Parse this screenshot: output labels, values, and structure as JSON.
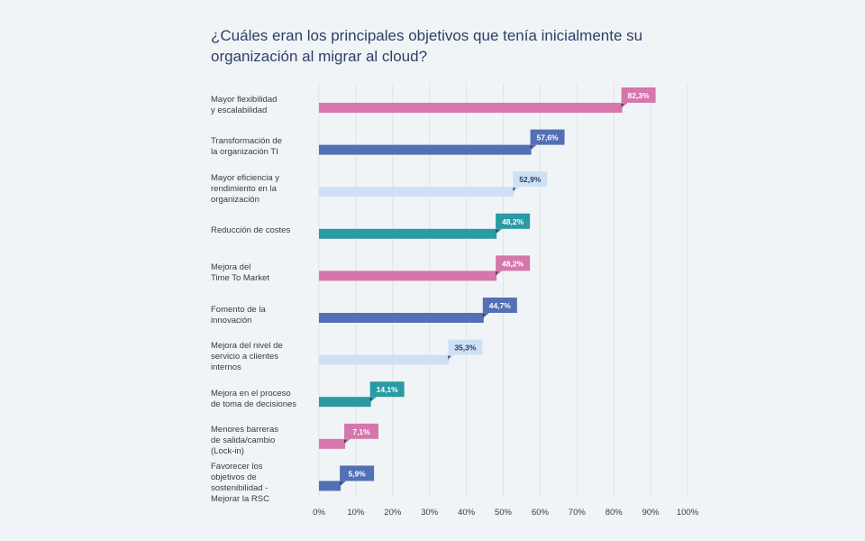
{
  "chart_data": {
    "type": "bar",
    "orientation": "horizontal",
    "title": "¿Cuáles eran los principales objetivos que tenía inicialmente su organización al migrar al cloud?",
    "categories": [
      [
        "Mayor flexibilidad",
        "y escalabilidad"
      ],
      [
        "Transformación de",
        "la organización TI"
      ],
      [
        "Mayor eficiencia y",
        "rendimiento en la",
        "organización"
      ],
      [
        "Reducción de costes"
      ],
      [
        "Mejora del",
        "Time To Market"
      ],
      [
        "Fomento de la",
        "innovación"
      ],
      [
        "Mejora del nivel de",
        "servicio a clientes",
        "internos"
      ],
      [
        "Mejora en el proceso",
        "de toma de decisiones"
      ],
      [
        "Menores barreras",
        "de salida/cambio",
        "(Lock-in)"
      ],
      [
        "Favorecer los",
        "objetivos de",
        "sostenibilidad -",
        "Mejorar la RSC"
      ]
    ],
    "values": [
      82.3,
      57.6,
      52.9,
      48.2,
      48.2,
      44.7,
      35.3,
      14.1,
      7.1,
      5.9
    ],
    "value_labels": [
      "82,3%",
      "57,6%",
      "52,9%",
      "48,2%",
      "48,2%",
      "44,7%",
      "35,3%",
      "14,1%",
      "7,1%",
      "5,9%"
    ],
    "colors": [
      "#d676ad",
      "#5470b4",
      "#cfe0f5",
      "#2a9aa4",
      "#d676ad",
      "#5470b4",
      "#cfe0f5",
      "#2a9aa4",
      "#d676ad",
      "#5470b4"
    ],
    "label_text_colors": [
      "#ffffff",
      "#ffffff",
      "#2d3f66",
      "#ffffff",
      "#ffffff",
      "#ffffff",
      "#2d3f66",
      "#ffffff",
      "#ffffff",
      "#ffffff"
    ],
    "xticks": [
      "0%",
      "10%",
      "20%",
      "30%",
      "40%",
      "50%",
      "60%",
      "70%",
      "80%",
      "90%",
      "100%"
    ],
    "xlim": [
      0,
      100
    ],
    "grid": true,
    "xlabel": "",
    "ylabel": ""
  }
}
